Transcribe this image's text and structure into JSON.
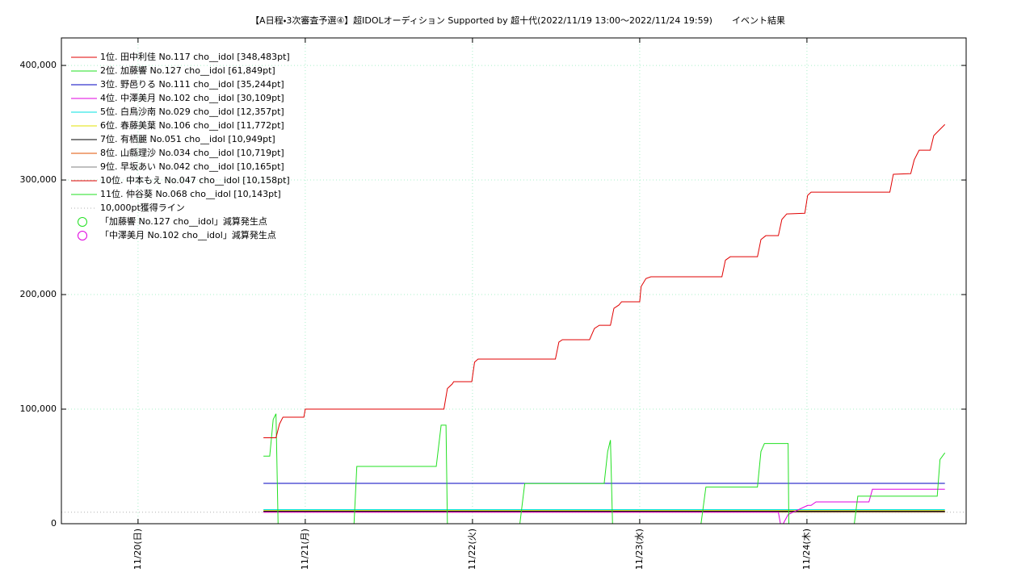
{
  "chart_data": {
    "type": "line",
    "title": "【A日程・3次審査予選④】超IDOLオーディション Supported by 超十代(2022/11/19 13:00～2022/11/24 19:59)",
    "subtitle": "イベント結果",
    "xlim": [
      -11,
      118.85
    ],
    "xticks": [
      {
        "value": 0,
        "label": "11/20(日)"
      },
      {
        "value": 24,
        "label": "11/21(月)"
      },
      {
        "value": 48,
        "label": "11/22(火)"
      },
      {
        "value": 72,
        "label": "11/23(水)"
      },
      {
        "value": 96,
        "label": "11/24(木)"
      }
    ],
    "ylim": [
      0,
      424000
    ],
    "yticks": [
      0,
      {
        "value": 100000,
        "label": "100,000"
      },
      {
        "value": 200000,
        "label": "200,000"
      },
      {
        "value": 300000,
        "label": "300,000"
      },
      {
        "value": 400000,
        "label": "400,000"
      }
    ],
    "grid": true,
    "legend": "upper left",
    "series": [
      {
        "name": "1位. 田中利佳 No.117 cho__idol [348,483pt]",
        "color": "#e00000",
        "x": [
          18,
          19.8,
          20.3,
          20.8,
          23.8,
          24,
          43.9,
          44.4,
          45.1,
          45.3,
          47.9,
          48.3,
          48.8,
          59.9,
          60.4,
          60.9,
          64.8,
          65.5,
          66.2,
          67.8,
          68.3,
          69,
          69.4,
          72,
          72.2,
          72.9,
          73.6,
          83.8,
          84.3,
          85,
          88.9,
          89.4,
          90.1,
          91.9,
          92.4,
          93.1,
          95.7,
          96.1,
          96.6,
          107.9,
          108.4,
          110.9,
          111.4,
          112.1,
          113.7,
          114.2,
          114.9,
          115.8
        ],
        "values": [
          75000,
          75000,
          87000,
          93000,
          93000,
          100000,
          100000,
          118000,
          122000,
          124000,
          124000,
          141000,
          143700,
          143700,
          158500,
          160600,
          160600,
          170400,
          173200,
          173200,
          188000,
          190800,
          193700,
          193700,
          207000,
          214000,
          215500,
          215500,
          230000,
          233000,
          233000,
          248000,
          251400,
          251400,
          265500,
          270400,
          271000,
          286600,
          289400,
          289400,
          305000,
          305600,
          317600,
          326000,
          326000,
          338700,
          343000,
          348483
        ]
      },
      {
        "name": "2位. 加藤響 No.127 cho__idol [61,849pt]",
        "color": "#22e022",
        "x": [
          18,
          18.9,
          19.4,
          19.8,
          20.1,
          31,
          31.4,
          42.8,
          43.5,
          44.2,
          44.4,
          54.8,
          55.5,
          66.9,
          67.4,
          67.8,
          68.1,
          80.8,
          81.5,
          88.9,
          89.4,
          89.9,
          93.3,
          93.4,
          102.8,
          103.3,
          114.7,
          115.1,
          115.8
        ],
        "values": [
          59000,
          59000,
          91000,
          96000,
          0,
          0,
          50000,
          50000,
          86000,
          86000,
          0,
          0,
          35000,
          35000,
          63000,
          73000,
          0,
          0,
          32000,
          32000,
          63000,
          70000,
          70000,
          0,
          0,
          24000,
          24000,
          56000,
          61849
        ]
      },
      {
        "name": "3位. 野邑りる No.111 cho__idol [35,244pt]",
        "color": "#0000c0",
        "x": [
          18,
          115.8
        ],
        "values": [
          35244,
          35244
        ]
      },
      {
        "name": "4位. 中澤美月 No.102 cho__idol [30,109pt]",
        "color": "#e000e0",
        "x": [
          18,
          91.9,
          92.2,
          92.6,
          93.3,
          96.1,
          96.6,
          97.3,
          104.9,
          105.4,
          115.8
        ],
        "values": [
          10000,
          10000,
          0,
          0,
          8000,
          16000,
          16000,
          19000,
          19000,
          30109,
          30109
        ]
      },
      {
        "name": "5位. 白鳥沙南 No.029 cho__idol [12,357pt]",
        "color": "#00e0e0",
        "x": [
          18,
          115.8
        ],
        "values": [
          12357,
          12357
        ]
      },
      {
        "name": "6位. 春藤美葉 No.106 cho__idol [11,772pt]",
        "color": "#e0e000",
        "x": [
          18,
          115.8
        ],
        "values": [
          11772,
          11772
        ]
      },
      {
        "name": "7位. 有栖麗 No.051 cho__idol [10,949pt]",
        "color": "#000000",
        "x": [
          18,
          115.8
        ],
        "values": [
          10949,
          10949
        ]
      },
      {
        "name": "8位. 山縣理沙 No.034 cho__idol [10,719pt]",
        "color": "#e05000",
        "x": [
          18,
          115.8
        ],
        "values": [
          10719,
          10719
        ]
      },
      {
        "name": "9位. 早坂あい No.042 cho__idol [10,165pt]",
        "color": "#808080",
        "x": [
          18,
          115.8
        ],
        "values": [
          10165,
          10165
        ]
      },
      {
        "name": "10位. 中本もえ No.047 cho__idol [10,158pt]",
        "color": "#e00000",
        "x": [
          18,
          115.8
        ],
        "values": [
          10158,
          10158
        ]
      },
      {
        "name": "11位. 仲谷葵 No.068 cho__idol [10,143pt]",
        "color": "#22e022",
        "x": [
          18,
          115.8
        ],
        "values": [
          10143,
          10143
        ]
      }
    ],
    "reference_line": {
      "name": "10,000pt獲得ライン",
      "value": 10000,
      "color": "#b0b0b0"
    },
    "marker_legend": [
      {
        "name": "「加藤響 No.127 cho__idol」減算発生点",
        "color": "#22e022"
      },
      {
        "name": "「中澤美月 No.102 cho__idol」減算発生点",
        "color": "#e000e0"
      }
    ]
  }
}
